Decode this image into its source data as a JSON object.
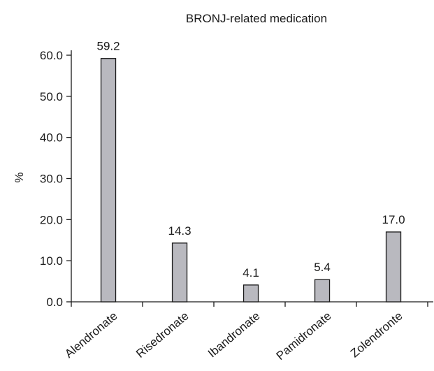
{
  "chart_data": {
    "type": "bar",
    "title": "BRONJ-related medication",
    "xlabel": "",
    "ylabel": "%",
    "ylim": [
      0,
      60
    ],
    "yticks": [
      "0.0",
      "10.0",
      "20.0",
      "30.0",
      "40.0",
      "50.0",
      "60.0"
    ],
    "categories": [
      "Alendronate",
      "Risedronate",
      "Ibandronate",
      "Pamidronate",
      "Zolendronte"
    ],
    "values": [
      59.2,
      14.3,
      4.1,
      5.4,
      17.0
    ],
    "value_labels": [
      "59.2",
      "14.3",
      "4.1",
      "5.4",
      "17.0"
    ],
    "bar_color": "#b9b9bf",
    "grid": false,
    "legend": "none"
  }
}
